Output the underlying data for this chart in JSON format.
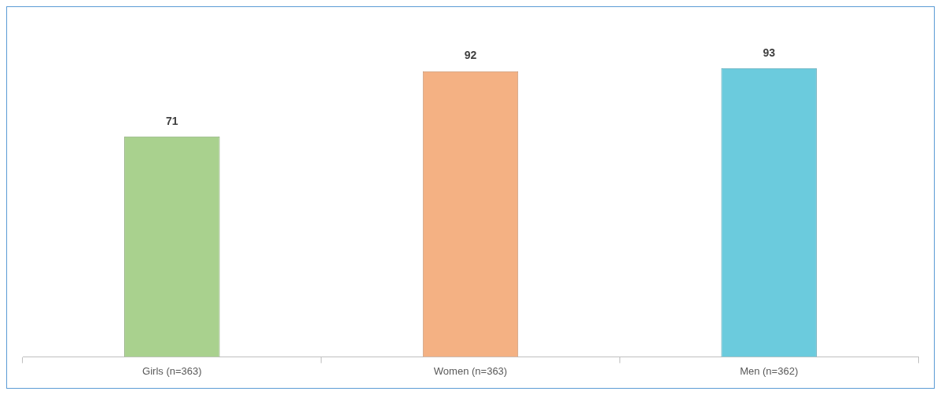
{
  "chart_data": {
    "type": "bar",
    "categories": [
      "Girls (n=363)",
      "Women (n=363)",
      "Men (n=362)"
    ],
    "values": [
      71,
      92,
      93
    ],
    "colors": [
      "#a9d18e",
      "#f4b183",
      "#6bcbdd"
    ],
    "data_labels": true,
    "grid": false,
    "legend": false
  }
}
